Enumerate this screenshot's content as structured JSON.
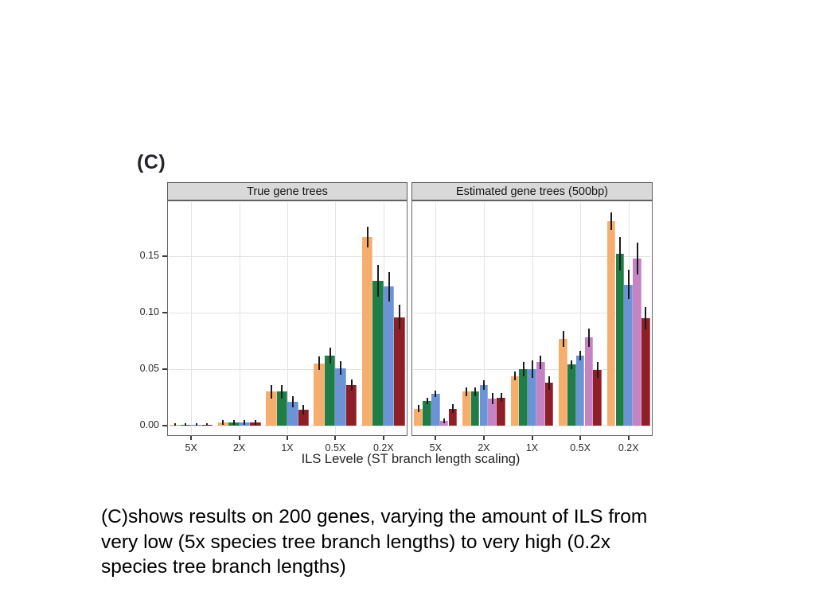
{
  "slide": {
    "figure_label": "(C)",
    "caption": "(C)shows results on 200 genes, varying the amount of ILS from\nvery low (5x species tree branch lengths) to very high (0.2x\nspecies tree branch lengths)"
  },
  "chart_data": {
    "type": "bar",
    "title": "",
    "xlabel": "ILS Levele (ST branch length scaling)",
    "ylabel": "",
    "ylim": [
      0,
      0.195
    ],
    "y_ticks": [
      0,
      0.05,
      0.1,
      0.15
    ],
    "y_tick_labels": [
      "0.00",
      "0.05",
      "0.10",
      "0.15"
    ],
    "categories": [
      "5X",
      "2X",
      "1X",
      "0.5X",
      "0.2X"
    ],
    "legend_position": "none",
    "grid": "major horizontal at 0.05 steps and vertical at each category, light gray",
    "error_bars": true,
    "error_bar_color": "#1c1c1c",
    "facets": [
      {
        "label": "True gene trees",
        "series": [
          {
            "name": "orange",
            "color": "#F5AE6E",
            "values": [
              0.001,
              0.003,
              0.03,
              0.055,
              0.167
            ],
            "errors": [
              0.001,
              0.002,
              0.006,
              0.006,
              0.009
            ]
          },
          {
            "name": "green",
            "color": "#1F7E47",
            "values": [
              0.001,
              0.003,
              0.03,
              0.062,
              0.128
            ],
            "errors": [
              0.001,
              0.002,
              0.006,
              0.007,
              0.014
            ]
          },
          {
            "name": "blue",
            "color": "#6B93D6",
            "values": [
              0.001,
              0.003,
              0.021,
              0.051,
              0.123
            ],
            "errors": [
              0.001,
              0.002,
              0.005,
              0.006,
              0.013
            ]
          },
          {
            "name": "dark-red",
            "color": "#8E1F27",
            "values": [
              0.001,
              0.003,
              0.014,
              0.036,
              0.096
            ],
            "errors": [
              0.001,
              0.002,
              0.004,
              0.005,
              0.011
            ]
          }
        ]
      },
      {
        "label": "Estimated gene trees (500bp)",
        "series": [
          {
            "name": "orange",
            "color": "#F5AE6E",
            "values": [
              0.015,
              0.03,
              0.044,
              0.077,
              0.181
            ],
            "errors": [
              0.003,
              0.004,
              0.004,
              0.007,
              0.008
            ]
          },
          {
            "name": "green",
            "color": "#1F7E47",
            "values": [
              0.022,
              0.03,
              0.05,
              0.054,
              0.152
            ],
            "errors": [
              0.003,
              0.004,
              0.006,
              0.004,
              0.015
            ]
          },
          {
            "name": "blue",
            "color": "#6B93D6",
            "values": [
              0.028,
              0.036,
              0.05,
              0.062,
              0.125
            ],
            "errors": [
              0.003,
              0.004,
              0.008,
              0.004,
              0.013
            ]
          },
          {
            "name": "purple",
            "color": "#C583C3",
            "values": [
              0.004,
              0.024,
              0.056,
              0.078,
              0.148
            ],
            "errors": [
              0.002,
              0.005,
              0.006,
              0.008,
              0.014
            ]
          },
          {
            "name": "dark-red",
            "color": "#8E1F27",
            "values": [
              0.015,
              0.025,
              0.038,
              0.049,
              0.095
            ],
            "errors": [
              0.004,
              0.004,
              0.006,
              0.007,
              0.01
            ]
          }
        ]
      }
    ]
  }
}
